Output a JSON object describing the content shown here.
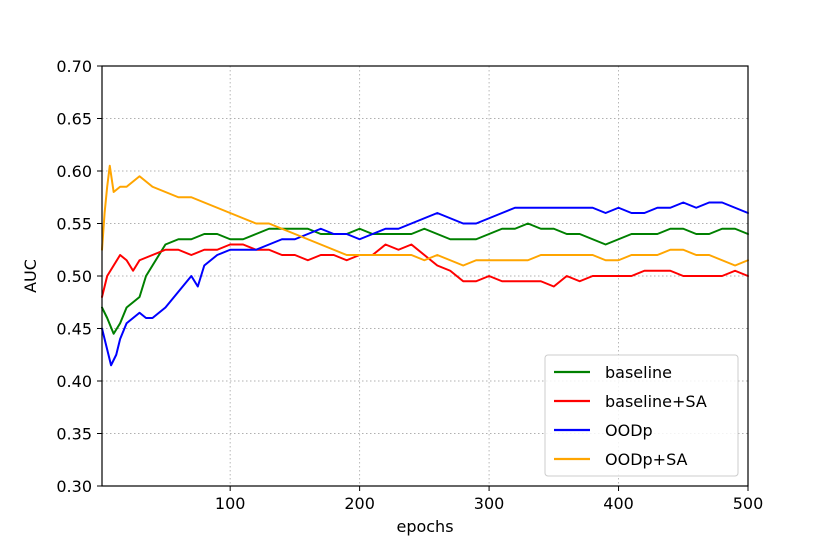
{
  "chart_data": {
    "type": "line",
    "title": "",
    "xlabel": "epochs",
    "ylabel": "AUC",
    "xlim": [
      1,
      500
    ],
    "ylim": [
      0.3,
      0.7
    ],
    "xticks": [
      100,
      200,
      300,
      400,
      500
    ],
    "yticks": [
      "0.30",
      "0.35",
      "0.40",
      "0.45",
      "0.50",
      "0.55",
      "0.60",
      "0.65",
      "0.70"
    ],
    "grid": true,
    "legend_position": "lower-right",
    "series": [
      {
        "name": "baseline",
        "color": "#008000",
        "points": [
          [
            1,
            0.47
          ],
          [
            5,
            0.46
          ],
          [
            10,
            0.445
          ],
          [
            15,
            0.455
          ],
          [
            20,
            0.47
          ],
          [
            25,
            0.475
          ],
          [
            30,
            0.48
          ],
          [
            35,
            0.5
          ],
          [
            40,
            0.51
          ],
          [
            45,
            0.52
          ],
          [
            50,
            0.53
          ],
          [
            60,
            0.535
          ],
          [
            70,
            0.535
          ],
          [
            80,
            0.54
          ],
          [
            90,
            0.54
          ],
          [
            100,
            0.535
          ],
          [
            110,
            0.535
          ],
          [
            120,
            0.54
          ],
          [
            130,
            0.545
          ],
          [
            140,
            0.545
          ],
          [
            150,
            0.545
          ],
          [
            160,
            0.545
          ],
          [
            170,
            0.54
          ],
          [
            180,
            0.54
          ],
          [
            190,
            0.54
          ],
          [
            200,
            0.545
          ],
          [
            210,
            0.54
          ],
          [
            220,
            0.54
          ],
          [
            230,
            0.54
          ],
          [
            240,
            0.54
          ],
          [
            250,
            0.545
          ],
          [
            260,
            0.54
          ],
          [
            270,
            0.535
          ],
          [
            280,
            0.535
          ],
          [
            290,
            0.535
          ],
          [
            300,
            0.54
          ],
          [
            310,
            0.545
          ],
          [
            320,
            0.545
          ],
          [
            330,
            0.55
          ],
          [
            340,
            0.545
          ],
          [
            350,
            0.545
          ],
          [
            360,
            0.54
          ],
          [
            370,
            0.54
          ],
          [
            380,
            0.535
          ],
          [
            390,
            0.53
          ],
          [
            400,
            0.535
          ],
          [
            410,
            0.54
          ],
          [
            420,
            0.54
          ],
          [
            430,
            0.54
          ],
          [
            440,
            0.545
          ],
          [
            450,
            0.545
          ],
          [
            460,
            0.54
          ],
          [
            470,
            0.54
          ],
          [
            480,
            0.545
          ],
          [
            490,
            0.545
          ],
          [
            500,
            0.54
          ]
        ]
      },
      {
        "name": "baseline+SA",
        "color": "#ff0000",
        "points": [
          [
            1,
            0.48
          ],
          [
            5,
            0.5
          ],
          [
            10,
            0.51
          ],
          [
            15,
            0.52
          ],
          [
            20,
            0.515
          ],
          [
            25,
            0.505
          ],
          [
            30,
            0.515
          ],
          [
            40,
            0.52
          ],
          [
            50,
            0.525
          ],
          [
            60,
            0.525
          ],
          [
            70,
            0.52
          ],
          [
            80,
            0.525
          ],
          [
            90,
            0.525
          ],
          [
            100,
            0.53
          ],
          [
            110,
            0.53
          ],
          [
            120,
            0.525
          ],
          [
            130,
            0.525
          ],
          [
            140,
            0.52
          ],
          [
            150,
            0.52
          ],
          [
            160,
            0.515
          ],
          [
            170,
            0.52
          ],
          [
            180,
            0.52
          ],
          [
            190,
            0.515
          ],
          [
            200,
            0.52
          ],
          [
            210,
            0.52
          ],
          [
            220,
            0.53
          ],
          [
            230,
            0.525
          ],
          [
            240,
            0.53
          ],
          [
            250,
            0.52
          ],
          [
            260,
            0.51
          ],
          [
            270,
            0.505
          ],
          [
            280,
            0.495
          ],
          [
            290,
            0.495
          ],
          [
            300,
            0.5
          ],
          [
            310,
            0.495
          ],
          [
            320,
            0.495
          ],
          [
            330,
            0.495
          ],
          [
            340,
            0.495
          ],
          [
            350,
            0.49
          ],
          [
            360,
            0.5
          ],
          [
            370,
            0.495
          ],
          [
            380,
            0.5
          ],
          [
            390,
            0.5
          ],
          [
            400,
            0.5
          ],
          [
            410,
            0.5
          ],
          [
            420,
            0.505
          ],
          [
            430,
            0.505
          ],
          [
            440,
            0.505
          ],
          [
            450,
            0.5
          ],
          [
            460,
            0.5
          ],
          [
            470,
            0.5
          ],
          [
            480,
            0.5
          ],
          [
            490,
            0.505
          ],
          [
            500,
            0.5
          ]
        ]
      },
      {
        "name": "OODp",
        "color": "#0000ff",
        "points": [
          [
            1,
            0.45
          ],
          [
            5,
            0.43
          ],
          [
            8,
            0.415
          ],
          [
            12,
            0.425
          ],
          [
            15,
            0.44
          ],
          [
            20,
            0.455
          ],
          [
            25,
            0.46
          ],
          [
            30,
            0.465
          ],
          [
            35,
            0.46
          ],
          [
            40,
            0.46
          ],
          [
            45,
            0.465
          ],
          [
            50,
            0.47
          ],
          [
            60,
            0.485
          ],
          [
            70,
            0.5
          ],
          [
            75,
            0.49
          ],
          [
            80,
            0.51
          ],
          [
            90,
            0.52
          ],
          [
            100,
            0.525
          ],
          [
            110,
            0.525
          ],
          [
            120,
            0.525
          ],
          [
            130,
            0.53
          ],
          [
            140,
            0.535
          ],
          [
            150,
            0.535
          ],
          [
            160,
            0.54
          ],
          [
            170,
            0.545
          ],
          [
            180,
            0.54
          ],
          [
            190,
            0.54
          ],
          [
            200,
            0.535
          ],
          [
            210,
            0.54
          ],
          [
            220,
            0.545
          ],
          [
            230,
            0.545
          ],
          [
            240,
            0.55
          ],
          [
            250,
            0.555
          ],
          [
            260,
            0.56
          ],
          [
            270,
            0.555
          ],
          [
            280,
            0.55
          ],
          [
            290,
            0.55
          ],
          [
            300,
            0.555
          ],
          [
            310,
            0.56
          ],
          [
            320,
            0.565
          ],
          [
            330,
            0.565
          ],
          [
            340,
            0.565
          ],
          [
            350,
            0.565
          ],
          [
            360,
            0.565
          ],
          [
            370,
            0.565
          ],
          [
            380,
            0.565
          ],
          [
            390,
            0.56
          ],
          [
            400,
            0.565
          ],
          [
            410,
            0.56
          ],
          [
            420,
            0.56
          ],
          [
            430,
            0.565
          ],
          [
            440,
            0.565
          ],
          [
            450,
            0.57
          ],
          [
            460,
            0.565
          ],
          [
            470,
            0.57
          ],
          [
            480,
            0.57
          ],
          [
            490,
            0.565
          ],
          [
            500,
            0.56
          ]
        ]
      },
      {
        "name": "OODp+SA",
        "color": "#ffa500",
        "points": [
          [
            1,
            0.525
          ],
          [
            3,
            0.56
          ],
          [
            5,
            0.585
          ],
          [
            7,
            0.605
          ],
          [
            10,
            0.58
          ],
          [
            15,
            0.585
          ],
          [
            20,
            0.585
          ],
          [
            25,
            0.59
          ],
          [
            30,
            0.595
          ],
          [
            35,
            0.59
          ],
          [
            40,
            0.585
          ],
          [
            50,
            0.58
          ],
          [
            60,
            0.575
          ],
          [
            70,
            0.575
          ],
          [
            80,
            0.57
          ],
          [
            90,
            0.565
          ],
          [
            100,
            0.56
          ],
          [
            110,
            0.555
          ],
          [
            120,
            0.55
          ],
          [
            130,
            0.55
          ],
          [
            140,
            0.545
          ],
          [
            150,
            0.54
          ],
          [
            160,
            0.535
          ],
          [
            170,
            0.53
          ],
          [
            180,
            0.525
          ],
          [
            190,
            0.52
          ],
          [
            200,
            0.52
          ],
          [
            210,
            0.52
          ],
          [
            220,
            0.52
          ],
          [
            230,
            0.52
          ],
          [
            240,
            0.52
          ],
          [
            250,
            0.515
          ],
          [
            260,
            0.52
          ],
          [
            270,
            0.515
          ],
          [
            280,
            0.51
          ],
          [
            290,
            0.515
          ],
          [
            300,
            0.515
          ],
          [
            310,
            0.515
          ],
          [
            320,
            0.515
          ],
          [
            330,
            0.515
          ],
          [
            340,
            0.52
          ],
          [
            350,
            0.52
          ],
          [
            360,
            0.52
          ],
          [
            370,
            0.52
          ],
          [
            380,
            0.52
          ],
          [
            390,
            0.515
          ],
          [
            400,
            0.515
          ],
          [
            410,
            0.52
          ],
          [
            420,
            0.52
          ],
          [
            430,
            0.52
          ],
          [
            440,
            0.525
          ],
          [
            450,
            0.525
          ],
          [
            460,
            0.52
          ],
          [
            470,
            0.52
          ],
          [
            480,
            0.515
          ],
          [
            490,
            0.51
          ],
          [
            500,
            0.515
          ]
        ]
      }
    ]
  }
}
